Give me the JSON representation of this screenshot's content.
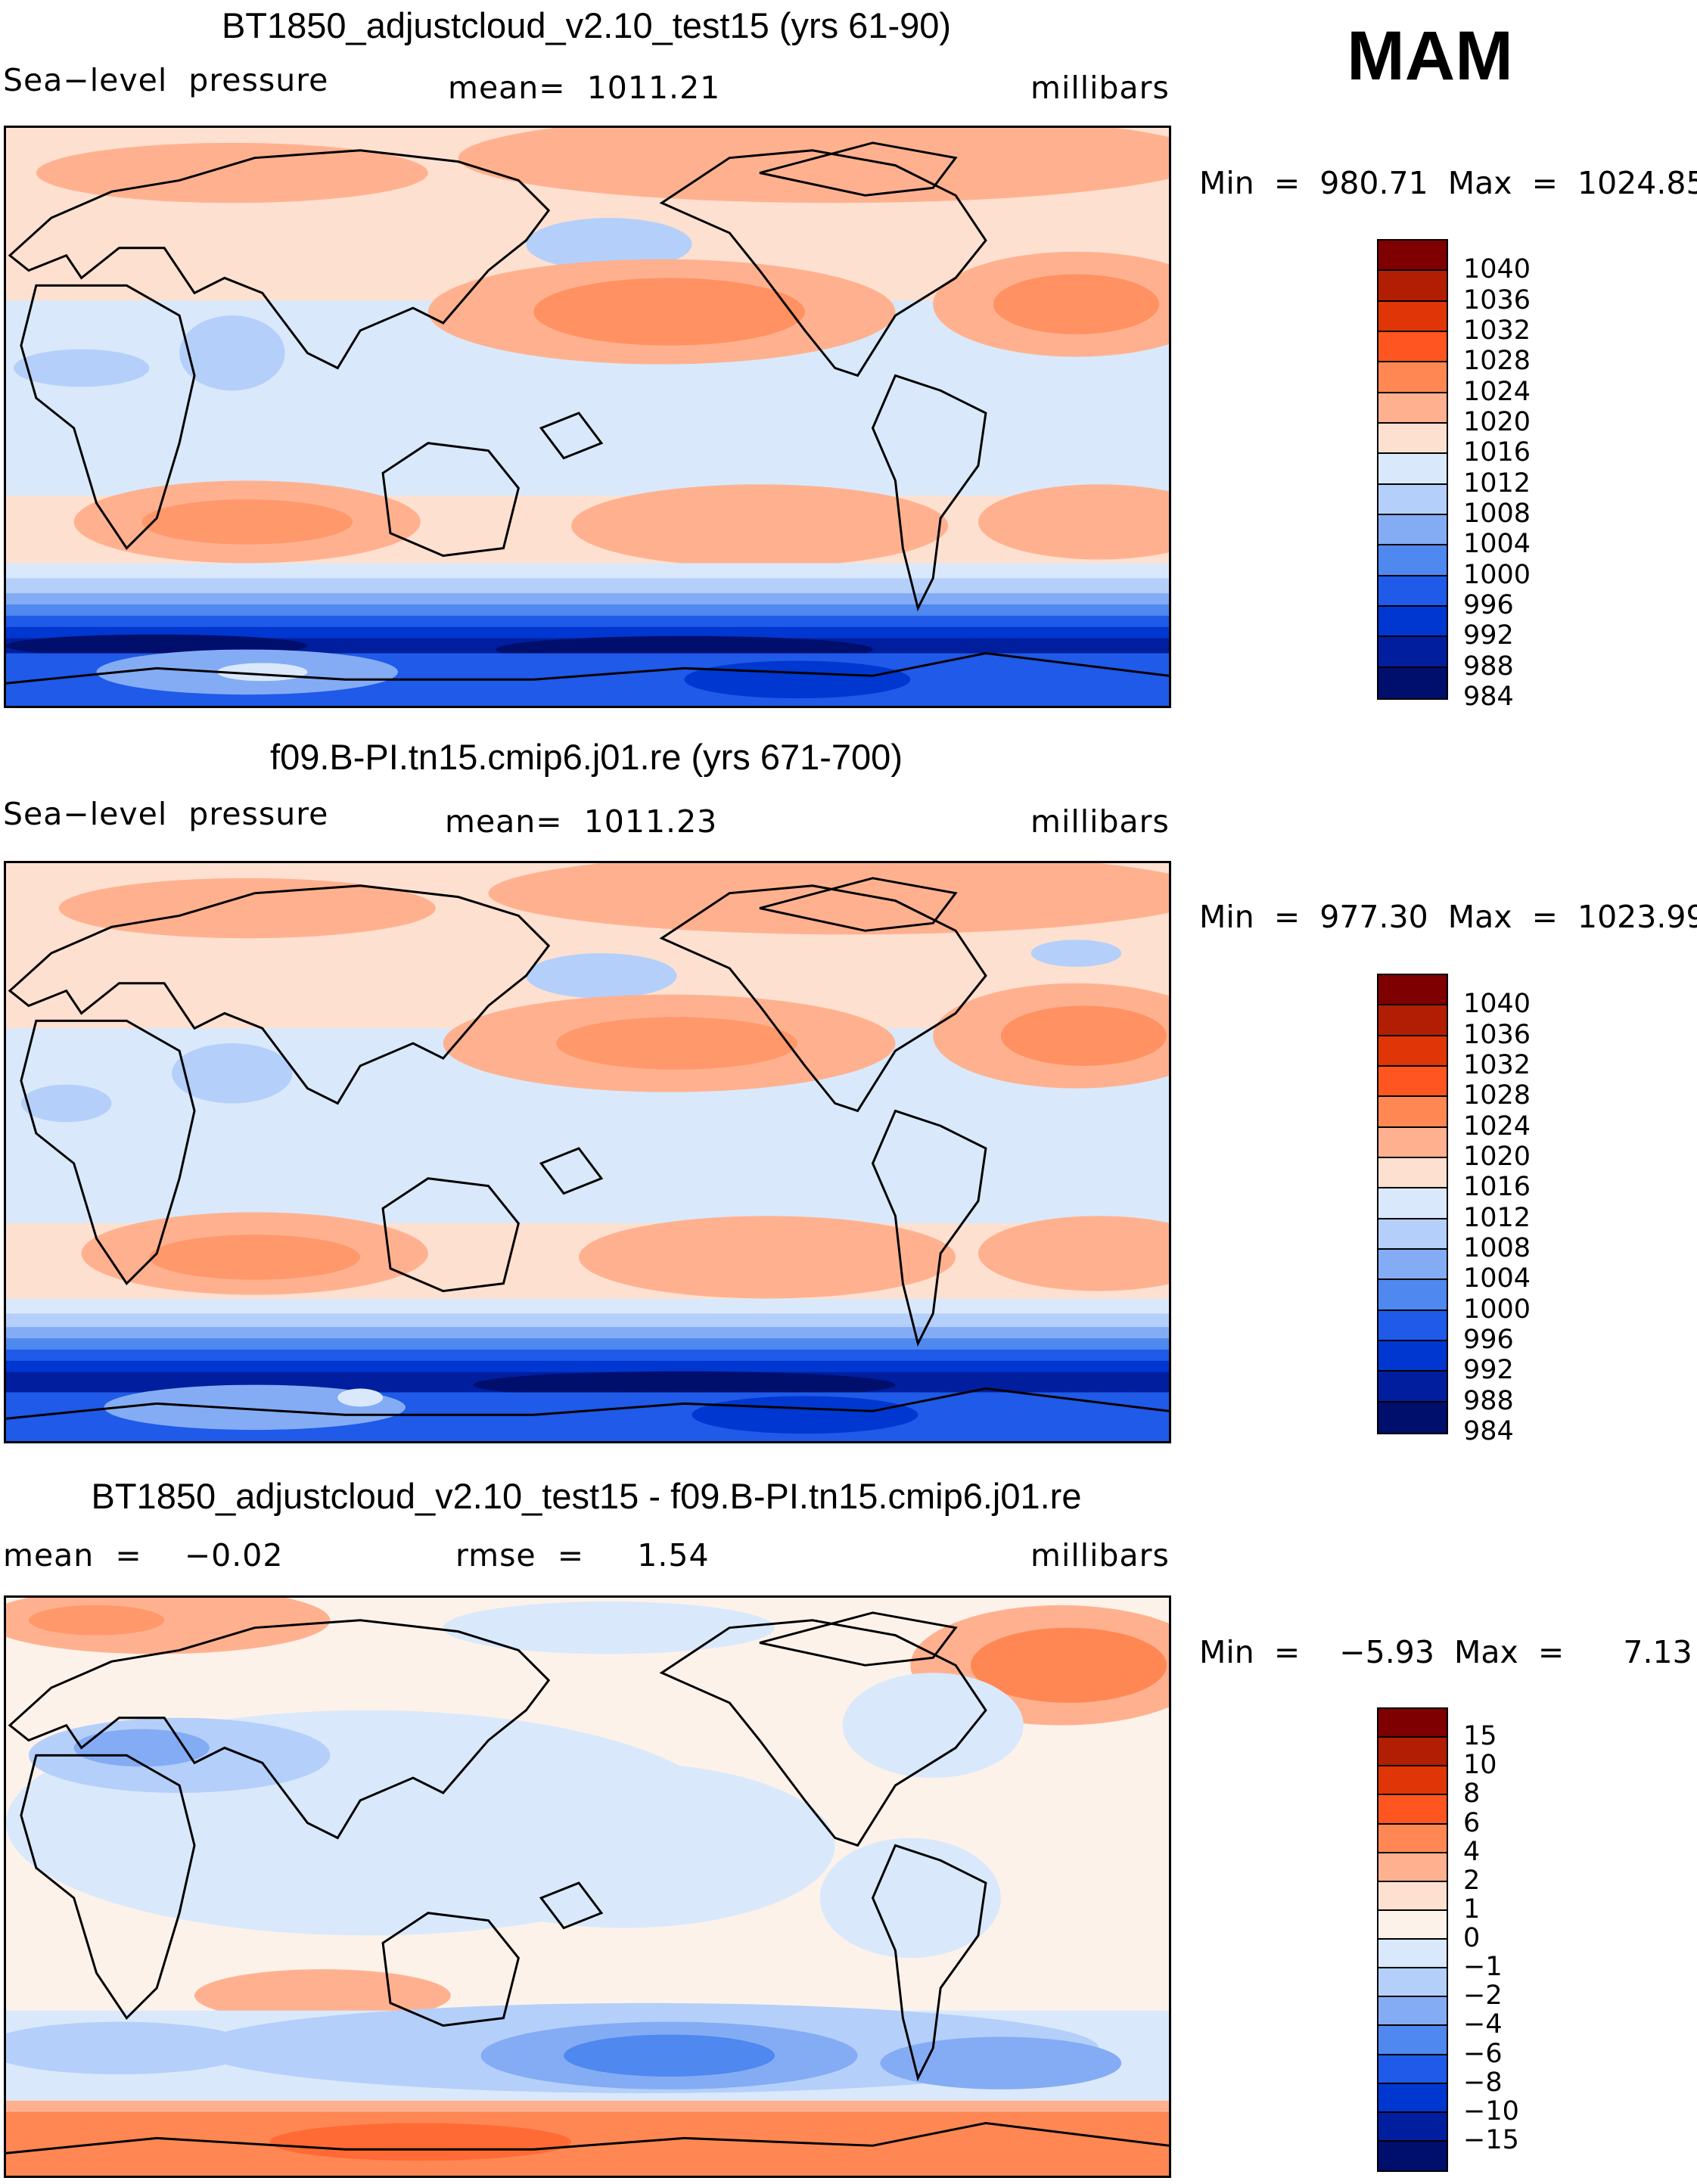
{
  "season": "MAM",
  "panels": [
    {
      "title": "BT1850_adjustcloud_v2.10_test15 (yrs 61-90)",
      "left_label": "Sea−level  pressure",
      "center_label": "mean=  1011.21",
      "right_label": "millibars",
      "minmax": "Min  =  980.71  Max  =  1024.85",
      "kind": "abs",
      "colorbar": {
        "labels": [
          "1040",
          "1036",
          "1032",
          "1028",
          "1024",
          "1020",
          "1016",
          "1012",
          "1008",
          "1004",
          "1000",
          "996",
          "992",
          "988",
          "984"
        ],
        "colors": [
          "#7f0000",
          "#b21e03",
          "#e03507",
          "#ff5621",
          "#ff8753",
          "#ffb18f",
          "#fde0d0",
          "#d9e9fb",
          "#b4cffa",
          "#84acf4",
          "#4f88ee",
          "#1f5ae8",
          "#0037d0",
          "#001e9e",
          "#000e6c"
        ]
      }
    },
    {
      "title": "f09.B-PI.tn15.cmip6.j01.re (yrs 671-700)",
      "left_label": "Sea−level  pressure",
      "center_label": "mean=  1011.23",
      "right_label": "millibars",
      "minmax": "Min  =  977.30  Max  =  1023.99",
      "kind": "abs",
      "colorbar": {
        "labels": [
          "1040",
          "1036",
          "1032",
          "1028",
          "1024",
          "1020",
          "1016",
          "1012",
          "1008",
          "1004",
          "1000",
          "996",
          "992",
          "988",
          "984"
        ],
        "colors": [
          "#7f0000",
          "#b21e03",
          "#e03507",
          "#ff5621",
          "#ff8753",
          "#ffb18f",
          "#fde0d0",
          "#d9e9fb",
          "#b4cffa",
          "#84acf4",
          "#4f88ee",
          "#1f5ae8",
          "#0037d0",
          "#001e9e",
          "#000e6c"
        ]
      }
    },
    {
      "title": "BT1850_adjustcloud_v2.10_test15 - f09.B-PI.tn15.cmip6.j01.re",
      "left_label": "mean  =    −0.02",
      "center_label": "rmse  =     1.54",
      "right_label": "millibars",
      "minmax": "Min  =    −5.93  Max  =      7.13",
      "kind": "diff",
      "colorbar": {
        "labels": [
          "15",
          "10",
          "8",
          "6",
          "4",
          "2",
          "1",
          "0",
          "−1",
          "−2",
          "−4",
          "−6",
          "−8",
          "−10",
          "−15"
        ],
        "colors": [
          "#7f0000",
          "#b21e03",
          "#e03507",
          "#ff5621",
          "#ff8753",
          "#ffb18f",
          "#fde0d0",
          "#fdf2ea",
          "#d9e9fb",
          "#b4cffa",
          "#84acf4",
          "#4f88ee",
          "#1f5ae8",
          "#0037d0",
          "#001e9e",
          "#000e6c"
        ]
      }
    }
  ]
}
